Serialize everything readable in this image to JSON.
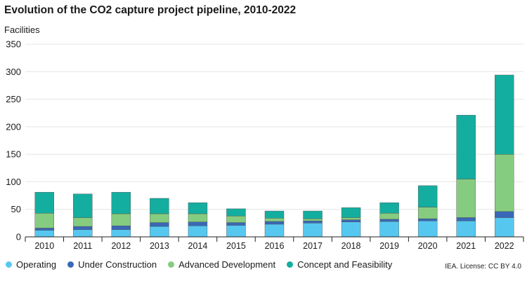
{
  "chart_data": {
    "type": "bar",
    "stacked": true,
    "title": "Evolution of the CO2 capture project pipeline, 2010-2022",
    "ylabel": "Facilities",
    "ylim": [
      0,
      350
    ],
    "yticks": [
      0,
      50,
      100,
      150,
      200,
      250,
      300,
      350
    ],
    "grid": true,
    "legend_position": "bottom-left",
    "categories": [
      "2010",
      "2011",
      "2012",
      "2013",
      "2014",
      "2015",
      "2016",
      "2017",
      "2018",
      "2019",
      "2020",
      "2021",
      "2022"
    ],
    "series": [
      {
        "name": "Operating",
        "color": "#56c8f0",
        "values": [
          12,
          13,
          13,
          19,
          20,
          21,
          23,
          25,
          27,
          28,
          29,
          29,
          35
        ]
      },
      {
        "name": "Under Construction",
        "color": "#3a68b8",
        "values": [
          4,
          6,
          7,
          7,
          7,
          5,
          5,
          4,
          4,
          4,
          4,
          6,
          11
        ]
      },
      {
        "name": "Advanced Development",
        "color": "#86cc80",
        "values": [
          27,
          16,
          22,
          16,
          15,
          12,
          6,
          4,
          4,
          11,
          21,
          70,
          104
        ]
      },
      {
        "name": "Concept and Feasibility",
        "color": "#13aea0",
        "values": [
          38,
          43,
          39,
          28,
          20,
          13,
          13,
          14,
          18,
          19,
          39,
          116,
          144
        ]
      }
    ]
  },
  "source_note": "IEA. License: CC BY 4.0"
}
